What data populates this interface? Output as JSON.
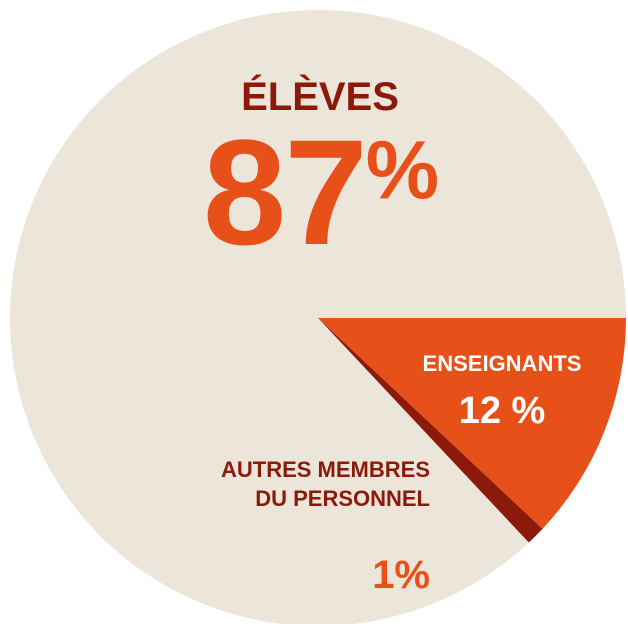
{
  "chart_data": {
    "type": "pie",
    "categories": [
      "ÉLÈVES",
      "ENSEIGNANTS",
      "AUTRES MEMBRES DU PERSONNEL"
    ],
    "values": [
      87,
      12,
      1
    ],
    "value_labels": [
      "87%",
      "12 %",
      "1%"
    ],
    "colors": [
      "#ece5da",
      "#e8501a",
      "#8c1a0b"
    ]
  }
}
